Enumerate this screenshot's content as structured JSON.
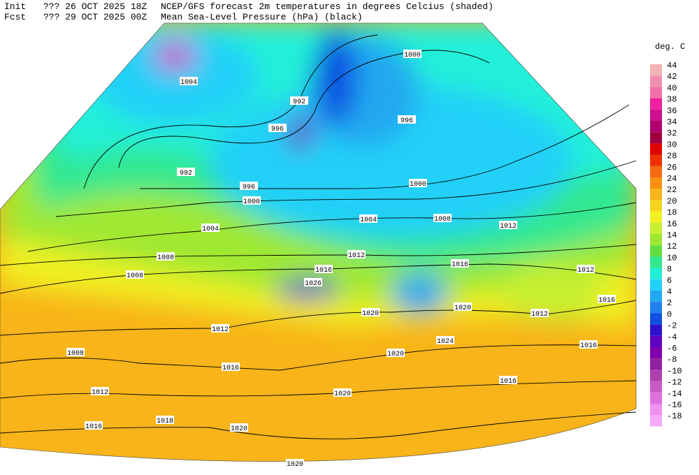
{
  "header": {
    "init_label": "Init",
    "init": "??? 26 OCT 2025 18Z",
    "fcst_label": "Fcst",
    "fcst": "??? 29 OCT 2025 00Z",
    "line1": "NCEP/GFS forecast 2m temperatures in degrees Celcius (shaded)",
    "line2": "Mean Sea-Level Pressure (hPa) (black)"
  },
  "legend": {
    "title": "deg. C",
    "levels": [
      {
        "value": 44,
        "color": "#f4b4b4"
      },
      {
        "value": 42,
        "color": "#f090b0"
      },
      {
        "value": 40,
        "color": "#f070a8"
      },
      {
        "value": 38,
        "color": "#f020a0"
      },
      {
        "value": 36,
        "color": "#d01090"
      },
      {
        "value": 34,
        "color": "#b00070"
      },
      {
        "value": 32,
        "color": "#a00040"
      },
      {
        "value": 30,
        "color": "#e00000"
      },
      {
        "value": 28,
        "color": "#f03000"
      },
      {
        "value": 26,
        "color": "#f86810"
      },
      {
        "value": 24,
        "color": "#f89010"
      },
      {
        "value": 22,
        "color": "#f8b418"
      },
      {
        "value": 20,
        "color": "#f8d418"
      },
      {
        "value": 18,
        "color": "#f0f020"
      },
      {
        "value": 16,
        "color": "#c8f030"
      },
      {
        "value": 14,
        "color": "#a0e830"
      },
      {
        "value": 12,
        "color": "#60e040"
      },
      {
        "value": 10,
        "color": "#30e890"
      },
      {
        "value": 8,
        "color": "#20f0d8"
      },
      {
        "value": 6,
        "color": "#20d0f8"
      },
      {
        "value": 4,
        "color": "#20a8f0"
      },
      {
        "value": 2,
        "color": "#2080f0"
      },
      {
        "value": 0,
        "color": "#1050e0"
      },
      {
        "value": -2,
        "color": "#3010d0"
      },
      {
        "value": -4,
        "color": "#6000c0"
      },
      {
        "value": -6,
        "color": "#8000b0"
      },
      {
        "value": -8,
        "color": "#9020a0"
      },
      {
        "value": -10,
        "color": "#b040b0"
      },
      {
        "value": -12,
        "color": "#c858c8"
      },
      {
        "value": -14,
        "color": "#e070e0"
      },
      {
        "value": -16,
        "color": "#f090f0"
      },
      {
        "value": -18,
        "color": "#f8a8f8"
      }
    ]
  },
  "isobar_labels": [
    1000,
    1004,
    992,
    996,
    996,
    992,
    996,
    1000,
    1000,
    1004,
    1004,
    1008,
    1012,
    1008,
    1008,
    1012,
    1016,
    1016,
    1012,
    1016,
    1020,
    1020,
    1012,
    1012,
    1008,
    1016,
    1020,
    1024,
    1016,
    1016,
    1012,
    1020,
    1016,
    1018,
    1020,
    1020,
    1026
  ]
}
